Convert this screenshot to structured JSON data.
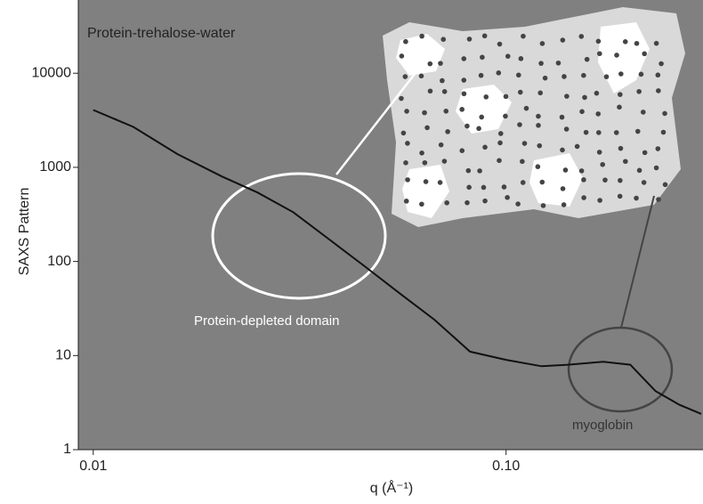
{
  "chart_data": {
    "type": "line",
    "title": "Protein-trehalose-water",
    "xlabel": "q (Å⁻¹)",
    "ylabel": "SAXS Pattern",
    "annotations": [
      "Protein-depleted domain",
      "myoglobin"
    ],
    "log_x": true,
    "log_y": true,
    "xlim": [
      0.0092,
      0.3
    ],
    "ylim": [
      1,
      60000
    ],
    "xticks": [
      0.01,
      {
        "value": 0.1,
        "label": "0.10"
      }
    ],
    "yticks": [
      1,
      10,
      100,
      1000,
      10000
    ],
    "series": [
      {
        "name": "SAXS",
        "color": "#111111",
        "x": [
          0.01,
          0.0125,
          0.016,
          0.0205,
          0.025,
          0.0305,
          0.0372,
          0.0453,
          0.0552,
          0.0671,
          0.0818,
          0.1,
          0.122,
          0.141,
          0.172,
          0.2,
          0.23,
          0.263,
          0.297
        ],
        "values": [
          4070,
          2690,
          1380,
          800,
          540,
          334,
          173,
          90,
          46,
          24,
          11,
          9,
          7.7,
          8,
          8.6,
          8,
          4.2,
          3,
          2.4
        ]
      }
    ]
  }
}
